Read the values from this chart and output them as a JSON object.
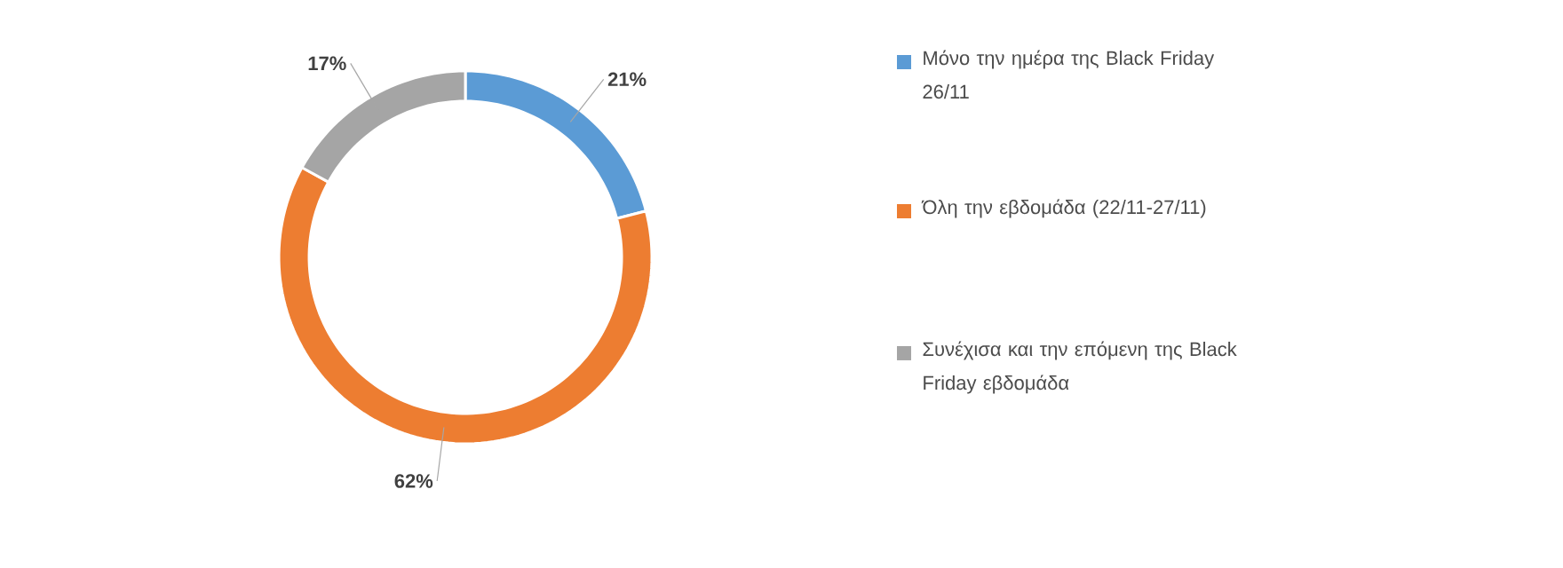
{
  "chart_data": {
    "type": "donut",
    "categories": [
      "Μόνο την ημέρα της Black Friday 26/11",
      "Όλη την εβδομάδα (22/11-27/11)",
      "Συνέχισα και την επόμενη της Black Friday εβδομάδα"
    ],
    "values": [
      21,
      62,
      17
    ],
    "value_labels": [
      "21%",
      "62%",
      "17%"
    ],
    "colors": [
      "#5b9bd5",
      "#ed7d31",
      "#a5a5a5"
    ],
    "legend": "right"
  }
}
